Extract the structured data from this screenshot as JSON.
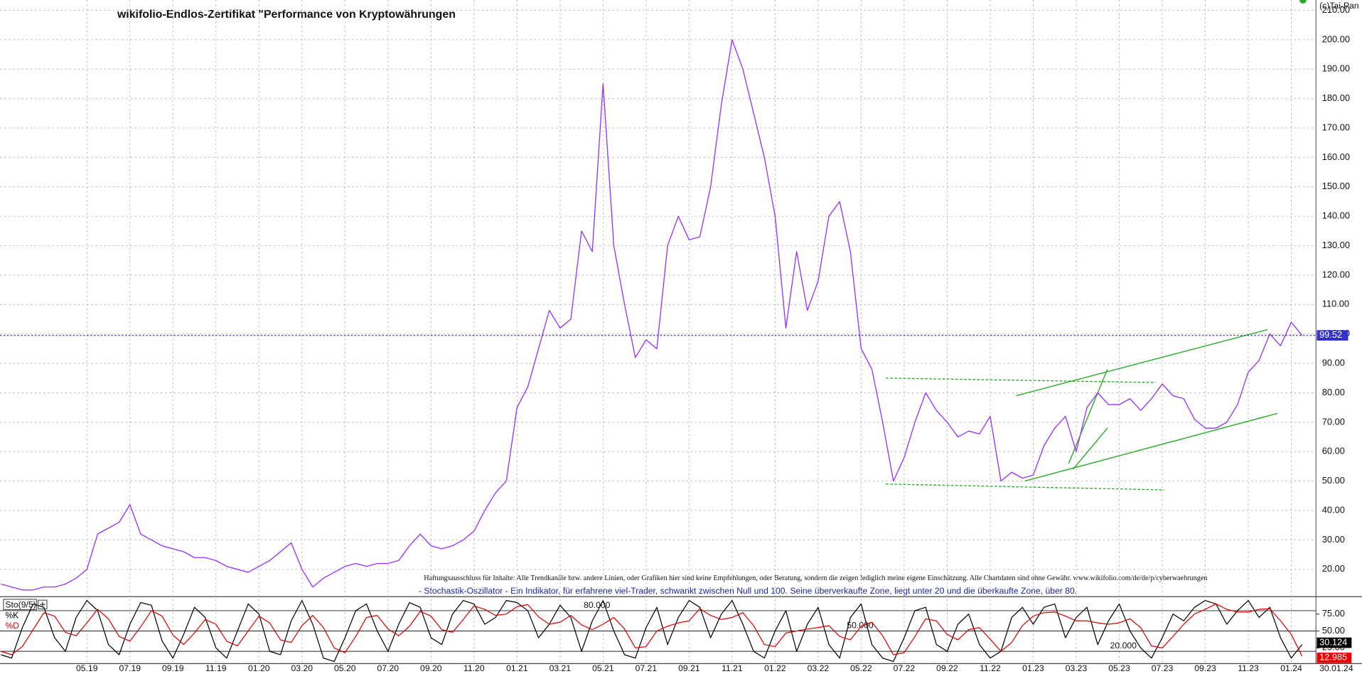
{
  "chart_data": [
    {
      "type": "line",
      "title": "wikifolio-Endlos-Zertifikat \"Performance von Kryptowährungen",
      "copyright": "(c)Tai-Pan",
      "disclaimer": "Haftungsausschluss für Inhalte: Alle Trendkanäle bzw. andere Linien, oder Grafiken hier sind keine Empfehlungen, oder Beratung, sondern die zeigen lediglich meine eigene Einschätzung. Alle Chartdaten sind ohne Gewähr.  www.wikifolio.com/de/de/p/cyberwaehrungen",
      "date_label": "30.01.24",
      "categories": [
        null,
        null,
        null,
        null,
        null,
        null,
        null,
        null,
        "05.19",
        null,
        null,
        null,
        "07.19",
        null,
        null,
        null,
        "09.19",
        null,
        null,
        null,
        "11.19",
        null,
        null,
        null,
        "01.20",
        null,
        null,
        null,
        "03.20",
        null,
        null,
        null,
        "05.20",
        null,
        null,
        null,
        "07.20",
        null,
        null,
        null,
        "09.20",
        null,
        null,
        null,
        "11.20",
        null,
        null,
        null,
        "01.21",
        null,
        null,
        null,
        "03.21",
        null,
        null,
        null,
        "05.21",
        null,
        null,
        null,
        "07.21",
        null,
        null,
        null,
        "09.21",
        null,
        null,
        null,
        "11.21",
        null,
        null,
        null,
        "01.22",
        null,
        null,
        null,
        "03.22",
        null,
        null,
        null,
        "05.22",
        null,
        null,
        null,
        "07.22",
        null,
        null,
        null,
        "09.22",
        null,
        null,
        null,
        "11.22",
        null,
        null,
        null,
        "01.23",
        null,
        null,
        null,
        "03.23",
        null,
        null,
        null,
        "05.23",
        null,
        null,
        null,
        "07.23",
        null,
        null,
        null,
        "09.23",
        null,
        null,
        null,
        "11.23",
        null,
        null,
        null,
        "01.24",
        null
      ],
      "series": [
        {
          "name": "wikifolio",
          "color": "#9933ff",
          "values": [
            15,
            14,
            13,
            13,
            14,
            14,
            15,
            17,
            20,
            32,
            34,
            36,
            42,
            32,
            30,
            28,
            27,
            26,
            24,
            24,
            23,
            21,
            20,
            19,
            21,
            23,
            26,
            29,
            20,
            14,
            17,
            19,
            21,
            22,
            21,
            22,
            22,
            23,
            28,
            32,
            28,
            27,
            28,
            30,
            33,
            40,
            46,
            50,
            75,
            82,
            95,
            108,
            102,
            105,
            135,
            128,
            185,
            130,
            110,
            92,
            98,
            95,
            130,
            140,
            132,
            133,
            150,
            178,
            200,
            190,
            175,
            160,
            140,
            102,
            128,
            108,
            118,
            140,
            145,
            128,
            95,
            88,
            70,
            50,
            58,
            70,
            80,
            74,
            70,
            65,
            67,
            66,
            72,
            50,
            53,
            51,
            52,
            62,
            68,
            72,
            60,
            75,
            80,
            76,
            76,
            78,
            74,
            78,
            83,
            79,
            78,
            71,
            68,
            68,
            70,
            76,
            87,
            91,
            100,
            96,
            104,
            99.52
          ]
        }
      ],
      "last_line_color": "#3333cc",
      "ylim": [
        11,
        213.5
      ],
      "yticks": [
        {
          "value": 20,
          "label": "20.00"
        },
        {
          "value": 30,
          "label": "30.00"
        },
        {
          "value": 40,
          "label": "40.00"
        },
        {
          "value": 50,
          "label": "50.00"
        },
        {
          "value": 60,
          "label": "60.00"
        },
        {
          "value": 70,
          "label": "70.00"
        },
        {
          "value": 80,
          "label": "80.00"
        },
        {
          "value": 90,
          "label": "90.00"
        },
        {
          "value": 100,
          "label": "100.00"
        },
        {
          "value": 110,
          "label": "110.00"
        },
        {
          "value": 120,
          "label": "120.00"
        },
        {
          "value": 130,
          "label": "130.00"
        },
        {
          "value": 140,
          "label": "140.00"
        },
        {
          "value": 150,
          "label": "150.00"
        },
        {
          "value": 160,
          "label": "160.00"
        },
        {
          "value": 170,
          "label": "170.00"
        },
        {
          "value": 180,
          "label": "180.00"
        },
        {
          "value": 190,
          "label": "190.00"
        },
        {
          "value": 200,
          "label": "200.00"
        },
        {
          "value": 210,
          "label": "210.00"
        }
      ],
      "grid": true,
      "trendline_color": "#22aa22",
      "trendlines": [
        {
          "x": [
            94.4,
            117.8
          ],
          "y": [
            79,
            101.5
          ],
          "dashed": false
        },
        {
          "x": [
            95.2,
            118.7
          ],
          "y": [
            50,
            73
          ],
          "dashed": false
        },
        {
          "x": [
            99.3,
            102.9
          ],
          "y": [
            56,
            88
          ],
          "dashed": false
        },
        {
          "x": [
            99.7,
            102.9
          ],
          "y": [
            54,
            68
          ],
          "dashed": false
        },
        {
          "x": [
            82.3,
            107.4
          ],
          "y": [
            85,
            83.5
          ],
          "dashed": true
        },
        {
          "x": [
            82.3,
            108.2
          ],
          "y": [
            49,
            47
          ],
          "dashed": true
        }
      ]
    },
    {
      "type": "line",
      "indicator_label": "Sto(9/5)",
      "description": "- Stochastik-Oszillator - Ein Indikator, für erfahrene viel-Trader, schwankt zwischen Null und 100. Seine überverkaufte Zone, liegt unter 20 und die überkaufte Zone, über 80.",
      "series": [
        {
          "name": "%K",
          "color": "#000000",
          "values": [
            15,
            10,
            55,
            90,
            85,
            40,
            20,
            70,
            95,
            80,
            30,
            15,
            60,
            92,
            88,
            35,
            10,
            45,
            85,
            70,
            25,
            10,
            50,
            90,
            75,
            20,
            15,
            65,
            95,
            60,
            10,
            5,
            40,
            80,
            90,
            50,
            20,
            60,
            92,
            85,
            40,
            30,
            75,
            95,
            90,
            60,
            70,
            95,
            92,
            80,
            40,
            60,
            88,
            70,
            20,
            65,
            95,
            50,
            15,
            10,
            55,
            85,
            30,
            70,
            95,
            85,
            40,
            75,
            95,
            60,
            20,
            10,
            50,
            80,
            20,
            60,
            85,
            30,
            10,
            70,
            90,
            30,
            10,
            5,
            40,
            80,
            85,
            30,
            20,
            60,
            75,
            30,
            10,
            20,
            70,
            85,
            60,
            85,
            90,
            40,
            70,
            85,
            30,
            65,
            90,
            50,
            25,
            10,
            40,
            75,
            65,
            85,
            95,
            90,
            60,
            80,
            95,
            70,
            85,
            40,
            10,
            30.124
          ]
        },
        {
          "name": "%D",
          "color": "#dd0000",
          "values": [
            20,
            15,
            27,
            52,
            77,
            72,
            48,
            43,
            62,
            82,
            68,
            42,
            35,
            56,
            80,
            72,
            44,
            30,
            47,
            67,
            60,
            35,
            28,
            50,
            72,
            62,
            37,
            33,
            58,
            73,
            55,
            25,
            18,
            42,
            70,
            73,
            53,
            43,
            57,
            79,
            72,
            52,
            48,
            67,
            87,
            82,
            73,
            75,
            86,
            89,
            71,
            60,
            63,
            73,
            59,
            52,
            60,
            70,
            53,
            25,
            27,
            50,
            57,
            62,
            65,
            83,
            73,
            67,
            70,
            77,
            58,
            30,
            27,
            47,
            50,
            53,
            55,
            58,
            42,
            37,
            57,
            63,
            43,
            15,
            18,
            42,
            68,
            65,
            45,
            37,
            52,
            55,
            38,
            20,
            33,
            58,
            72,
            77,
            78,
            72,
            65,
            65,
            62,
            60,
            62,
            68,
            55,
            28,
            25,
            42,
            60,
            75,
            82,
            90,
            82,
            78,
            78,
            82,
            83,
            65,
            45,
            12.985
          ]
        }
      ],
      "ylim": [
        0,
        100
      ],
      "yticks": [
        {
          "value": 75,
          "label": "75.00"
        },
        {
          "value": 50,
          "label": "50.00"
        },
        {
          "value": 25,
          "label": "25.00"
        }
      ],
      "levels": [
        {
          "value": 80,
          "label": "80.000"
        },
        {
          "value": 50,
          "label": "50.000"
        },
        {
          "value": 20,
          "label": "20.000"
        }
      ]
    }
  ]
}
